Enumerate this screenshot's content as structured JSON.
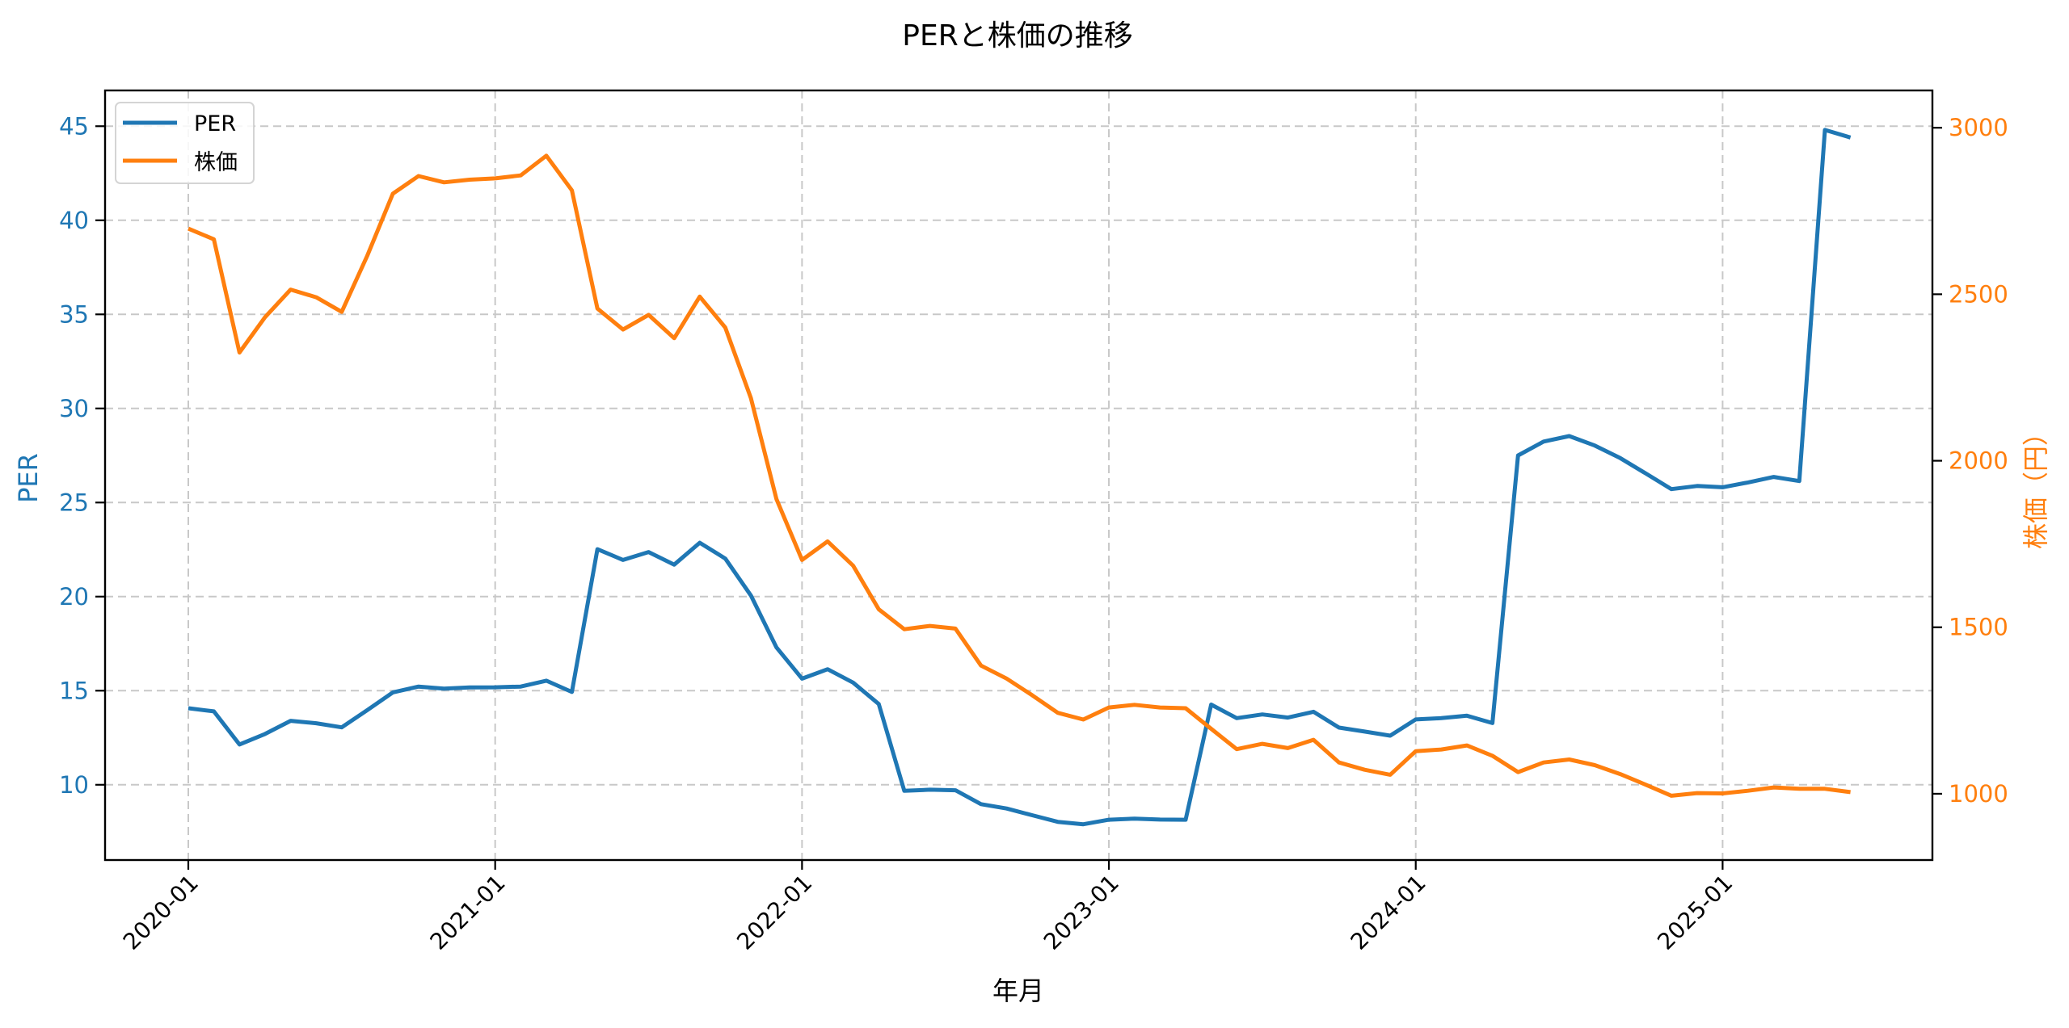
{
  "chart_data": {
    "type": "line",
    "title": "PERと株価の推移",
    "xlabel": "年月",
    "ylabel_left": "PER",
    "ylabel_right": "株価（円）",
    "ylabel": "PER",
    "dual_axis": true,
    "grid": true,
    "legend_position": "upper left",
    "xticks": [
      "2020-01",
      "2021-01",
      "2022-01",
      "2023-01",
      "2024-01",
      "2025-01"
    ],
    "yticks_left": [
      10,
      15,
      20,
      25,
      30,
      35,
      40,
      45
    ],
    "yticks_right": [
      1000,
      1500,
      2000,
      2500,
      3000
    ],
    "ylim_left": [
      6.0,
      46.9
    ],
    "ylim_right": [
      801,
      3112
    ],
    "x": [
      "2020-01",
      "2020-02",
      "2020-03",
      "2020-04",
      "2020-05",
      "2020-06",
      "2020-07",
      "2020-08",
      "2020-09",
      "2020-10",
      "2020-11",
      "2020-12",
      "2021-01",
      "2021-02",
      "2021-03",
      "2021-04",
      "2021-05",
      "2021-06",
      "2021-07",
      "2021-08",
      "2021-09",
      "2021-10",
      "2021-11",
      "2021-12",
      "2022-01",
      "2022-02",
      "2022-03",
      "2022-04",
      "2022-05",
      "2022-06",
      "2022-07",
      "2022-08",
      "2022-09",
      "2022-10",
      "2022-11",
      "2022-12",
      "2023-01",
      "2023-02",
      "2023-03",
      "2023-04",
      "2023-05",
      "2023-06",
      "2023-07",
      "2023-08",
      "2023-09",
      "2023-10",
      "2023-11",
      "2023-12",
      "2024-01",
      "2024-02",
      "2024-03",
      "2024-04",
      "2024-05",
      "2024-06",
      "2024-07",
      "2024-08",
      "2024-09",
      "2024-10",
      "2024-11",
      "2024-12",
      "2025-01",
      "2025-02",
      "2025-03",
      "2025-04",
      "2025-05",
      "2025-06"
    ],
    "series": [
      {
        "name": "PER",
        "axis": "left",
        "color": "#1f77b4",
        "values": [
          14.07,
          13.9,
          12.14,
          12.7,
          13.4,
          13.27,
          13.05,
          13.97,
          14.91,
          15.22,
          15.11,
          15.17,
          15.18,
          15.22,
          15.53,
          14.93,
          22.52,
          21.95,
          22.37,
          21.7,
          22.86,
          22.02,
          20.06,
          17.3,
          15.64,
          16.14,
          15.43,
          14.29,
          9.68,
          9.74,
          9.71,
          8.97,
          8.74,
          8.38,
          8.03,
          7.9,
          8.14,
          8.2,
          8.15,
          8.14,
          14.26,
          13.54,
          13.74,
          13.57,
          13.88,
          13.04,
          12.83,
          12.61,
          13.47,
          13.54,
          13.67,
          13.28,
          27.5,
          28.24,
          28.53,
          28.03,
          27.36,
          26.54,
          25.71,
          25.88,
          25.81,
          26.07,
          26.36,
          26.14,
          44.8,
          44.4
        ]
      },
      {
        "name": "株価",
        "axis": "right",
        "color": "#ff7f0e",
        "values": [
          2697,
          2665,
          2325,
          2431,
          2514,
          2491,
          2447,
          2616,
          2802,
          2855,
          2836,
          2844,
          2848,
          2857,
          2916,
          2812,
          2457,
          2394,
          2438,
          2368,
          2493,
          2400,
          2188,
          1885,
          1702,
          1758,
          1685,
          1554,
          1494,
          1504,
          1496,
          1385,
          1346,
          1296,
          1243,
          1223,
          1259,
          1267,
          1259,
          1257,
          1195,
          1134,
          1150,
          1137,
          1162,
          1094,
          1072,
          1057,
          1128,
          1133,
          1145,
          1114,
          1065,
          1094,
          1103,
          1086,
          1059,
          1027,
          994,
          1002,
          1001,
          1009,
          1019,
          1015,
          1015,
          1005
        ]
      }
    ]
  },
  "legend": {
    "items": [
      {
        "label": "PER",
        "color": "#1f77b4"
      },
      {
        "label": "株価",
        "color": "#ff7f0e"
      }
    ]
  },
  "colors": {
    "per": "#1f77b4",
    "price": "#ff7f0e",
    "grid": "#c8c8c8",
    "axis": "#000000"
  }
}
